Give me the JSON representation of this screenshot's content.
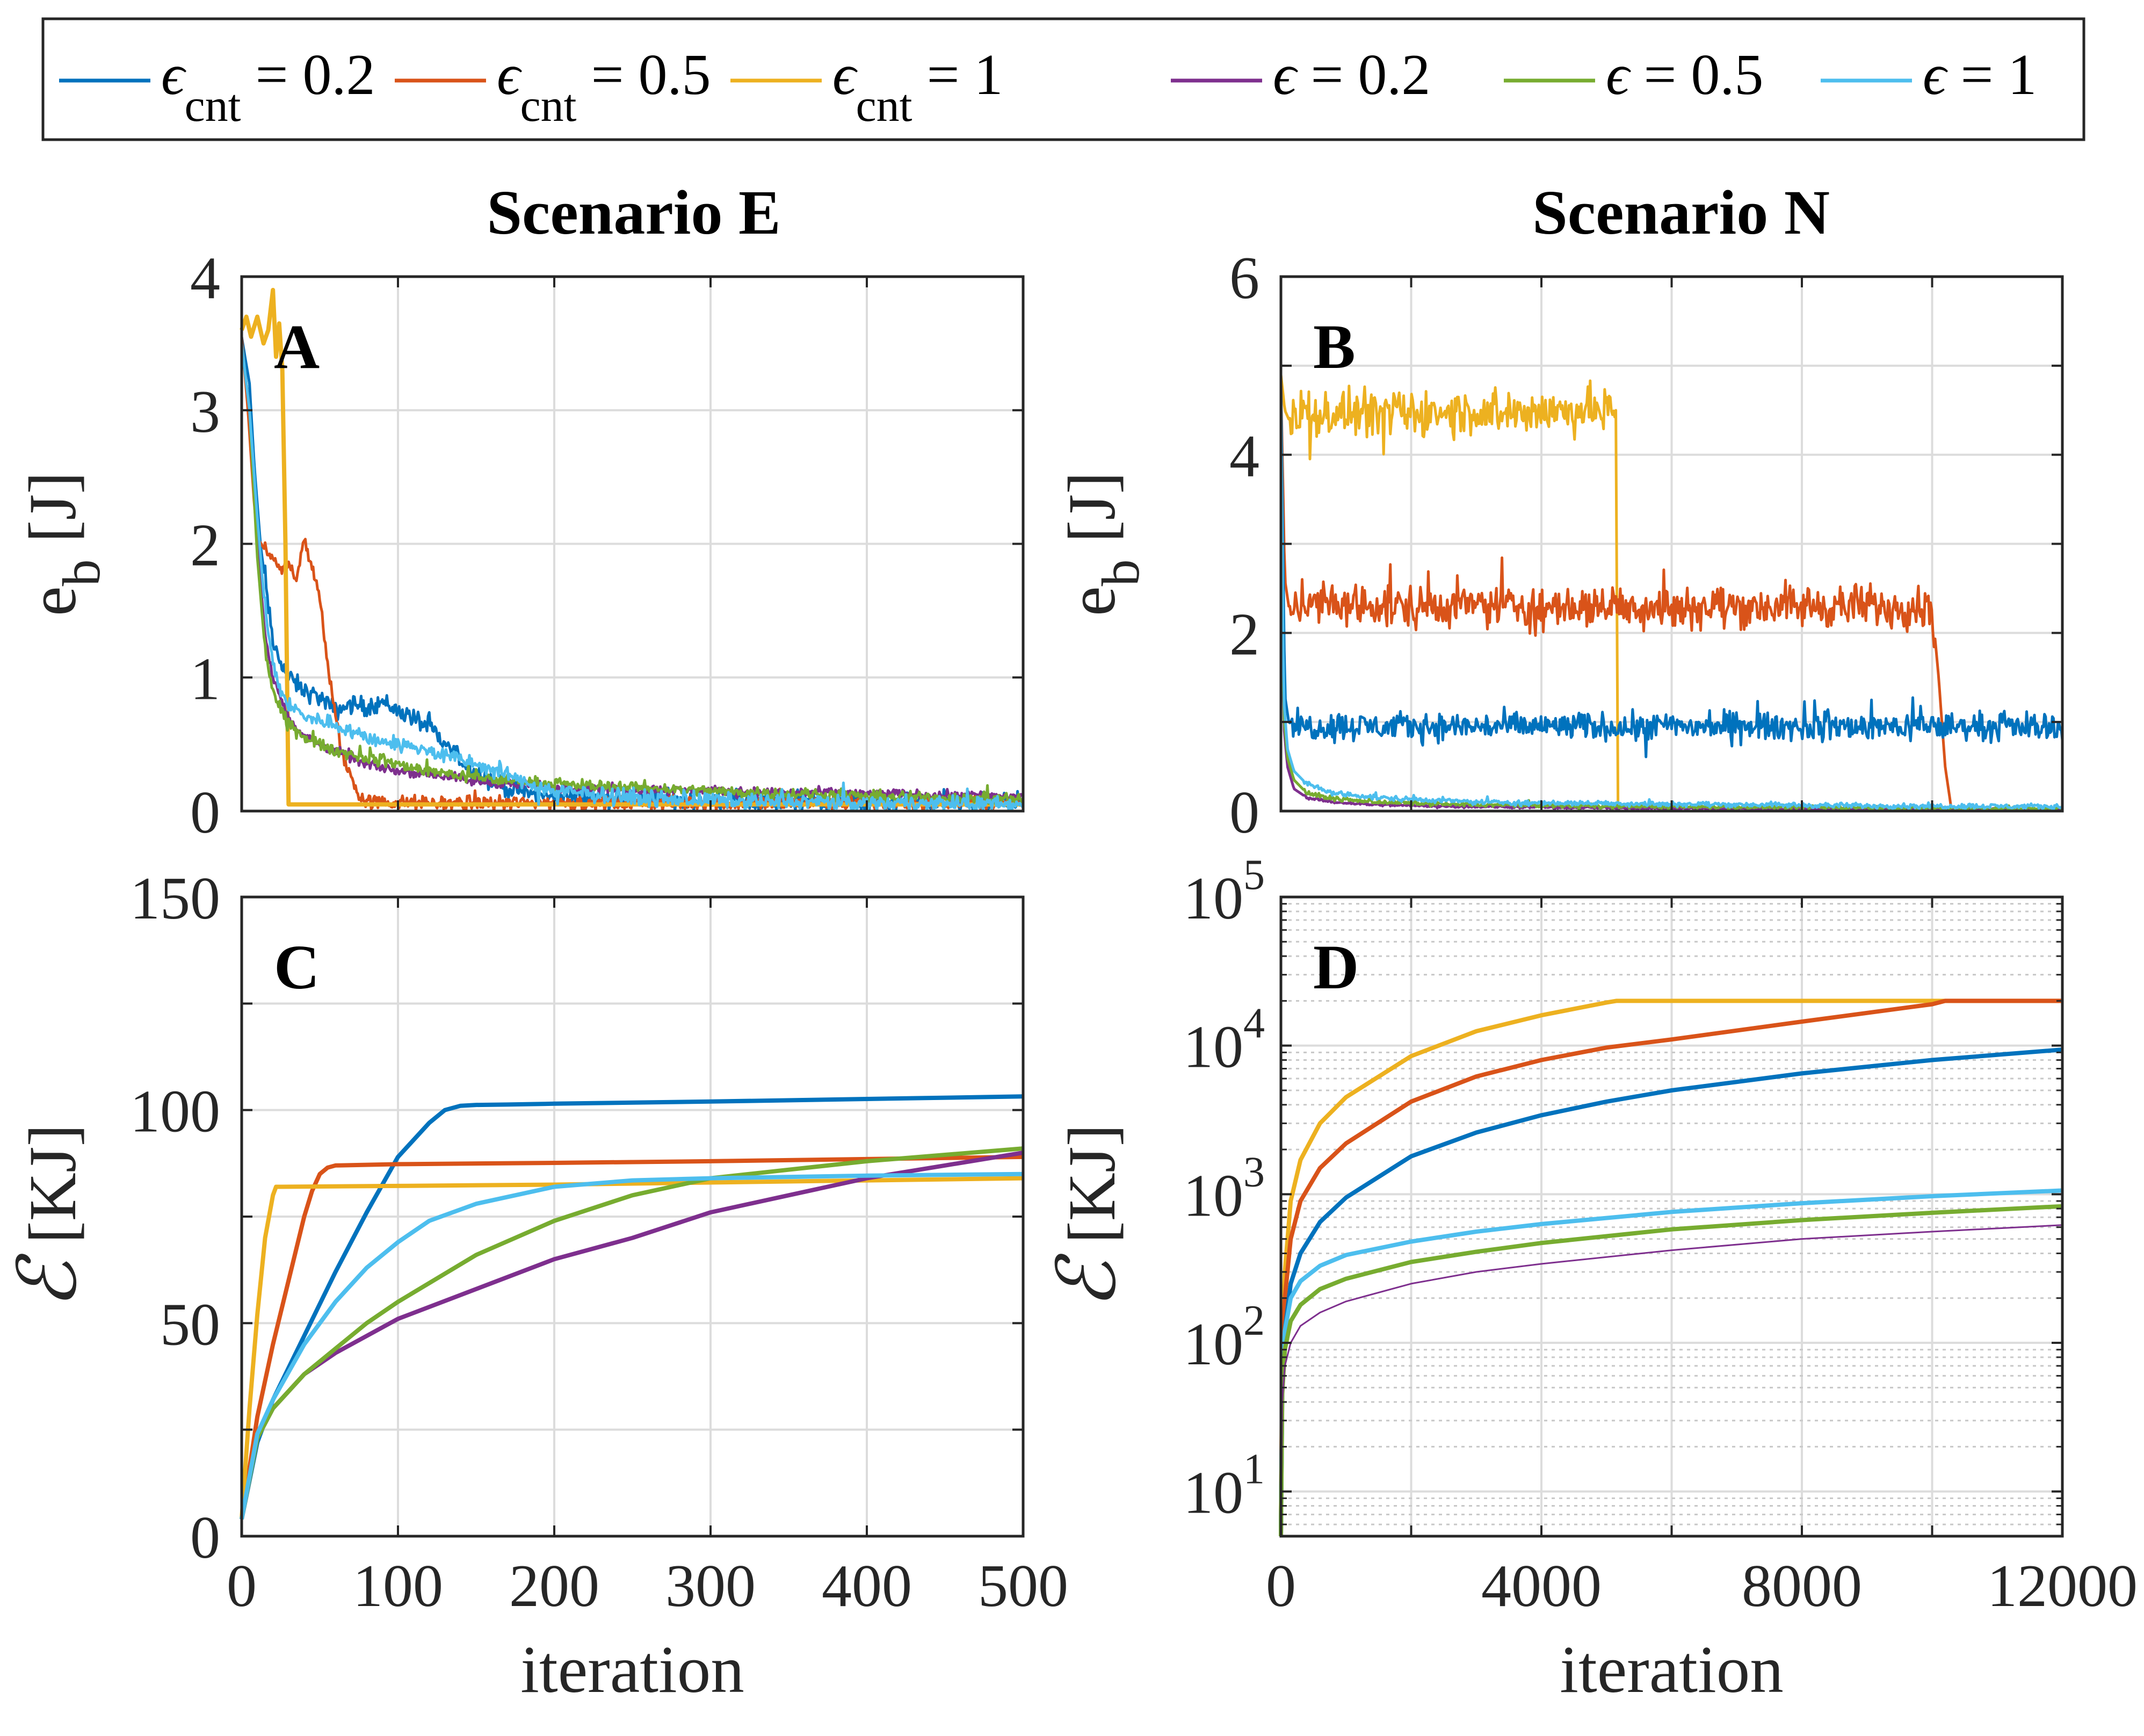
{
  "legend": {
    "location": "top, outside, horizontal",
    "entries": [
      {
        "label_base": "ϵ",
        "label_sub": "cnt",
        "label_rest": " = 0.2",
        "color": "#0072BD"
      },
      {
        "label_base": "ϵ",
        "label_sub": "cnt",
        "label_rest": " = 0.5",
        "color": "#D95319"
      },
      {
        "label_base": "ϵ",
        "label_sub": "cnt",
        "label_rest": " = 1",
        "color": "#EDB120"
      },
      {
        "label_base": "ϵ",
        "label_sub": "",
        "label_rest": " = 0.2",
        "color": "#7E2F8E"
      },
      {
        "label_base": "ϵ",
        "label_sub": "",
        "label_rest": " = 0.5",
        "color": "#77AC30"
      },
      {
        "label_base": "ϵ",
        "label_sub": "",
        "label_rest": " = 1",
        "color": "#4DBEEE"
      }
    ]
  },
  "column_titles": {
    "left": "Scenario E",
    "right": "Scenario N"
  },
  "chart_data": [
    {
      "id": "A",
      "type": "line",
      "panel_letter": "A",
      "xlim": [
        0,
        500
      ],
      "ylim": [
        0,
        4
      ],
      "xticks": [
        0,
        100,
        200,
        300,
        400,
        500
      ],
      "xtick_labels": [],
      "yticks": [
        0,
        1,
        2,
        3,
        4
      ],
      "ytick_labels": [
        "0",
        "1",
        "2",
        "3",
        "4"
      ],
      "ylabel": {
        "base": "e",
        "sub": "b",
        "rest": " [J]"
      },
      "xlabel": "",
      "grid": true,
      "yscale": "linear",
      "series": [
        {
          "color": "#0072BD",
          "x": [
            0,
            5,
            8,
            12,
            20,
            30,
            40,
            50,
            60,
            70,
            80,
            90,
            100,
            110,
            120,
            130,
            140,
            150,
            160,
            170,
            180,
            200,
            230,
            260,
            300,
            350,
            400,
            450,
            500
          ],
          "y": [
            3.55,
            3.2,
            2.6,
            2.0,
            1.25,
            1.0,
            0.9,
            0.85,
            0.75,
            0.8,
            0.78,
            0.82,
            0.75,
            0.7,
            0.62,
            0.5,
            0.38,
            0.3,
            0.22,
            0.17,
            0.14,
            0.11,
            0.1,
            0.09,
            0.08,
            0.07,
            0.07,
            0.06,
            0.06
          ],
          "noise": 0.05
        },
        {
          "color": "#D95319",
          "x": [
            0,
            4,
            8,
            10,
            15,
            20,
            25,
            30,
            35,
            40,
            45,
            50,
            55,
            60,
            65,
            70,
            75,
            80,
            100,
            150,
            200,
            300,
            400,
            500
          ],
          "y": [
            3.55,
            3.0,
            2.3,
            2.05,
            1.95,
            1.85,
            1.8,
            1.85,
            1.75,
            2.05,
            1.8,
            1.6,
            1.1,
            0.7,
            0.4,
            0.25,
            0.12,
            0.07,
            0.06,
            0.06,
            0.06,
            0.06,
            0.06,
            0.06
          ],
          "noise": 0.04
        },
        {
          "color": "#EDB120",
          "x": [
            0,
            3,
            6,
            10,
            14,
            17,
            20,
            22,
            24,
            26,
            28,
            30,
            35,
            40,
            60,
            100,
            200,
            300,
            400,
            500
          ],
          "y": [
            3.6,
            3.7,
            3.55,
            3.7,
            3.5,
            3.6,
            3.9,
            3.4,
            3.65,
            3.3,
            2.0,
            0.05,
            0.05,
            0.05,
            0.05,
            0.05,
            0.05,
            0.05,
            0.05,
            0.05
          ],
          "noise": 0.0
        },
        {
          "color": "#7E2F8E",
          "x": [
            0,
            5,
            10,
            15,
            20,
            25,
            30,
            40,
            50,
            60,
            70,
            80,
            100,
            120,
            150,
            200,
            250,
            300,
            350,
            400,
            450,
            500
          ],
          "y": [
            3.5,
            3.0,
            2.0,
            1.3,
            1.0,
            0.85,
            0.7,
            0.55,
            0.5,
            0.45,
            0.4,
            0.35,
            0.3,
            0.28,
            0.22,
            0.18,
            0.16,
            0.15,
            0.14,
            0.13,
            0.12,
            0.11
          ],
          "noise": 0.025
        },
        {
          "color": "#77AC30",
          "x": [
            0,
            5,
            10,
            15,
            20,
            25,
            30,
            40,
            50,
            60,
            80,
            100,
            120,
            150,
            200,
            250,
            300,
            350,
            400,
            450,
            500
          ],
          "y": [
            3.5,
            3.0,
            1.9,
            1.2,
            0.9,
            0.75,
            0.65,
            0.55,
            0.5,
            0.45,
            0.4,
            0.35,
            0.3,
            0.25,
            0.2,
            0.18,
            0.15,
            0.13,
            0.11,
            0.1,
            0.09
          ],
          "noise": 0.03
        },
        {
          "color": "#4DBEEE",
          "x": [
            0,
            5,
            10,
            15,
            20,
            25,
            30,
            40,
            50,
            60,
            70,
            80,
            100,
            120,
            150,
            180,
            200,
            250,
            300,
            350,
            400,
            450,
            500
          ],
          "y": [
            3.5,
            3.0,
            2.2,
            1.5,
            1.1,
            0.9,
            0.8,
            0.7,
            0.68,
            0.65,
            0.6,
            0.55,
            0.5,
            0.45,
            0.35,
            0.22,
            0.15,
            0.1,
            0.08,
            0.07,
            0.06,
            0.06,
            0.05
          ],
          "noise": 0.04
        }
      ]
    },
    {
      "id": "B",
      "type": "line",
      "panel_letter": "B",
      "xlim": [
        0,
        12000
      ],
      "ylim": [
        0,
        6
      ],
      "xticks": [
        0,
        2000,
        4000,
        6000,
        8000,
        10000,
        12000
      ],
      "xtick_labels": [],
      "yticks": [
        0,
        1,
        2,
        3,
        4,
        5,
        6
      ],
      "ytick_labels": [
        "0",
        "",
        "2",
        "",
        "4",
        "",
        "6"
      ],
      "ylabel": {
        "base": "e",
        "sub": "b",
        "rest": " [J]"
      },
      "xlabel": "",
      "grid": true,
      "yscale": "linear",
      "series": [
        {
          "color": "#EDB120",
          "x": [
            0,
            60,
            120,
            200,
            5100,
            5150,
            5170,
            6000,
            12000
          ],
          "y": [
            4.9,
            4.5,
            4.4,
            4.45,
            4.5,
            4.5,
            0.0,
            0.0,
            0.0
          ],
          "noise": 0.18,
          "noise_range": [
            150,
            5150
          ]
        },
        {
          "color": "#D95319",
          "x": [
            0,
            60,
            120,
            200,
            10000,
            10100,
            10200,
            10300,
            12000
          ],
          "y": [
            4.8,
            2.6,
            2.3,
            2.3,
            2.3,
            1.5,
            0.5,
            0.0,
            0.0
          ],
          "noise": 0.17,
          "noise_range": [
            150,
            10050
          ]
        },
        {
          "color": "#0072BD",
          "x": [
            0,
            60,
            120,
            200,
            12000
          ],
          "y": [
            4.8,
            1.3,
            1.0,
            0.95,
            0.95
          ],
          "noise": 0.11,
          "noise_range": [
            150,
            12000
          ]
        },
        {
          "color": "#7E2F8E",
          "x": [
            0,
            40,
            100,
            200,
            400,
            800,
            1500,
            3000,
            6000,
            9000,
            12000
          ],
          "y": [
            4.6,
            1.0,
            0.5,
            0.25,
            0.15,
            0.1,
            0.07,
            0.05,
            0.03,
            0.02,
            0.02
          ],
          "noise": 0.01
        },
        {
          "color": "#77AC30",
          "x": [
            0,
            40,
            100,
            200,
            400,
            800,
            1500,
            3000,
            6000,
            9000,
            12000
          ],
          "y": [
            4.6,
            1.1,
            0.6,
            0.35,
            0.2,
            0.14,
            0.1,
            0.07,
            0.05,
            0.04,
            0.03
          ],
          "noise": 0.015
        },
        {
          "color": "#4DBEEE",
          "x": [
            0,
            40,
            100,
            200,
            400,
            800,
            1500,
            3000,
            6000,
            9000,
            12000
          ],
          "y": [
            4.7,
            1.3,
            0.7,
            0.45,
            0.3,
            0.2,
            0.15,
            0.1,
            0.08,
            0.06,
            0.05
          ],
          "noise": 0.02
        }
      ]
    },
    {
      "id": "C",
      "type": "line",
      "panel_letter": "C",
      "xlim": [
        0,
        500
      ],
      "ylim": [
        0,
        150
      ],
      "xticks": [
        0,
        100,
        200,
        300,
        400,
        500
      ],
      "xtick_labels": [
        "0",
        "100",
        "200",
        "300",
        "400",
        "500"
      ],
      "yticks": [
        0,
        25,
        50,
        75,
        100,
        125,
        150
      ],
      "ytick_labels": [
        "0",
        "",
        "50",
        "",
        "100",
        "",
        "150"
      ],
      "ylabel": {
        "base": "ℰ",
        "sub": "",
        "rest": " [KJ]"
      },
      "xlabel": "iteration",
      "grid": true,
      "yscale": "linear",
      "series": [
        {
          "color": "#0072BD",
          "x": [
            0,
            10,
            20,
            40,
            60,
            80,
            100,
            120,
            130,
            140,
            150,
            170,
            200,
            300,
            400,
            500
          ],
          "y": [
            4,
            22,
            32,
            47,
            62,
            76,
            89,
            97,
            100,
            101,
            101.2,
            101.3,
            101.5,
            102,
            102.6,
            103.2
          ]
        },
        {
          "color": "#D95319",
          "x": [
            0,
            10,
            20,
            30,
            40,
            45,
            50,
            55,
            60,
            100,
            200,
            300,
            400,
            500
          ],
          "y": [
            4,
            28,
            45,
            60,
            75,
            81,
            85,
            86.5,
            87,
            87.3,
            87.6,
            88,
            88.5,
            89
          ]
        },
        {
          "color": "#EDB120",
          "x": [
            0,
            5,
            10,
            15,
            20,
            22,
            25,
            100,
            200,
            300,
            400,
            500
          ],
          "y": [
            4,
            30,
            52,
            70,
            80,
            82,
            82,
            82.2,
            82.5,
            83,
            83.5,
            84
          ]
        },
        {
          "color": "#7E2F8E",
          "x": [
            0,
            10,
            20,
            40,
            60,
            80,
            100,
            150,
            200,
            250,
            300,
            350,
            400,
            450,
            500
          ],
          "y": [
            4,
            23,
            30,
            38,
            43,
            47,
            51,
            58,
            65,
            70,
            76,
            80,
            84,
            87,
            90
          ]
        },
        {
          "color": "#77AC30",
          "x": [
            0,
            10,
            20,
            40,
            60,
            80,
            100,
            150,
            200,
            250,
            300,
            350,
            400,
            450,
            500
          ],
          "y": [
            4,
            23,
            30,
            38,
            44,
            50,
            55,
            66,
            74,
            80,
            84,
            86,
            88,
            89.5,
            91
          ]
        },
        {
          "color": "#4DBEEE",
          "x": [
            0,
            10,
            20,
            40,
            60,
            80,
            100,
            120,
            150,
            200,
            250,
            300,
            400,
            500
          ],
          "y": [
            4,
            24,
            32,
            45,
            55,
            63,
            69,
            74,
            78,
            82,
            83.5,
            84,
            84.6,
            85
          ]
        }
      ]
    },
    {
      "id": "D",
      "type": "line",
      "panel_letter": "D",
      "xlim": [
        0,
        12000
      ],
      "ylim": [
        5,
        100000
      ],
      "xticks": [
        0,
        2000,
        4000,
        6000,
        8000,
        10000,
        12000
      ],
      "xtick_labels": [
        "0",
        "",
        "4000",
        "",
        "8000",
        "",
        "12000"
      ],
      "ytick_decades": [
        1,
        2,
        3,
        4,
        5
      ],
      "ylabel": {
        "base": "ℰ",
        "sub": "",
        "rest": " [KJ]"
      },
      "xlabel": "iteration",
      "grid": true,
      "yscale": "log",
      "series": [
        {
          "color": "#EDB120",
          "x": [
            0,
            20,
            60,
            150,
            300,
            600,
            1000,
            2000,
            3000,
            4000,
            5000,
            5150,
            6000,
            12000
          ],
          "y": [
            5,
            80,
            300,
            900,
            1700,
            3000,
            4500,
            8500,
            12500,
            16000,
            19500,
            20000,
            20000,
            20000
          ]
        },
        {
          "color": "#D95319",
          "x": [
            0,
            20,
            60,
            150,
            300,
            600,
            1000,
            2000,
            3000,
            4000,
            5000,
            6000,
            8000,
            10000,
            10200,
            12000
          ],
          "y": [
            5,
            60,
            200,
            500,
            900,
            1500,
            2200,
            4200,
            6200,
            8000,
            9700,
            11000,
            14500,
            19000,
            20000,
            20000
          ]
        },
        {
          "color": "#0072BD",
          "x": [
            0,
            20,
            60,
            150,
            300,
            600,
            1000,
            2000,
            3000,
            4000,
            5000,
            6000,
            8000,
            10000,
            12000
          ],
          "y": [
            5,
            50,
            120,
            250,
            400,
            650,
            950,
            1800,
            2600,
            3400,
            4200,
            5000,
            6500,
            8000,
            9400
          ]
        },
        {
          "color": "#4DBEEE",
          "x": [
            0,
            20,
            60,
            150,
            300,
            600,
            1000,
            2000,
            3000,
            4000,
            6000,
            8000,
            10000,
            12000
          ],
          "y": [
            5,
            50,
            120,
            200,
            260,
            330,
            390,
            480,
            560,
            630,
            760,
            870,
            970,
            1060
          ]
        },
        {
          "color": "#77AC30",
          "x": [
            0,
            20,
            60,
            150,
            300,
            600,
            1000,
            2000,
            3000,
            4000,
            6000,
            8000,
            10000,
            12000
          ],
          "y": [
            5,
            45,
            90,
            140,
            180,
            230,
            270,
            350,
            410,
            470,
            580,
            670,
            750,
            830
          ]
        },
        {
          "color": "#7E2F8E",
          "x": [
            0,
            20,
            60,
            150,
            300,
            600,
            1000,
            2000,
            3000,
            4000,
            6000,
            8000,
            10000,
            12000
          ],
          "y": [
            5,
            40,
            70,
            100,
            130,
            160,
            190,
            250,
            300,
            340,
            420,
            500,
            560,
            620
          ]
        }
      ]
    }
  ]
}
